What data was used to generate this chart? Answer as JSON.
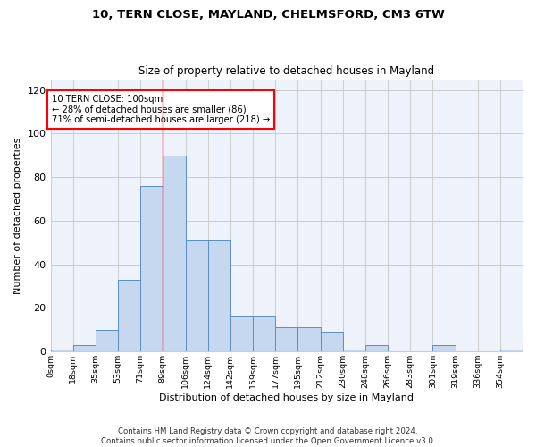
{
  "title1": "10, TERN CLOSE, MAYLAND, CHELMSFORD, CM3 6TW",
  "title2": "Size of property relative to detached houses in Mayland",
  "xlabel": "Distribution of detached houses by size in Mayland",
  "ylabel": "Number of detached properties",
  "bin_labels": [
    "0sqm",
    "18sqm",
    "35sqm",
    "53sqm",
    "71sqm",
    "89sqm",
    "106sqm",
    "124sqm",
    "142sqm",
    "159sqm",
    "177sqm",
    "195sqm",
    "212sqm",
    "230sqm",
    "248sqm",
    "266sqm",
    "283sqm",
    "301sqm",
    "319sqm",
    "336sqm",
    "354sqm"
  ],
  "bar_values": [
    1,
    3,
    10,
    33,
    76,
    90,
    51,
    51,
    16,
    16,
    11,
    11,
    9,
    1,
    3,
    0,
    0,
    3,
    0,
    0,
    1
  ],
  "bar_color": "#c5d8f0",
  "bar_edge_color": "#5a8fc2",
  "property_line_x": 5,
  "annotation_text": "10 TERN CLOSE: 100sqm\n← 28% of detached houses are smaller (86)\n71% of semi-detached houses are larger (218) →",
  "ylim": [
    0,
    125
  ],
  "yticks": [
    0,
    20,
    40,
    60,
    80,
    100,
    120
  ],
  "footer_text": "Contains HM Land Registry data © Crown copyright and database right 2024.\nContains public sector information licensed under the Open Government Licence v3.0.",
  "background_color": "#eef2fa",
  "n_bins": 21
}
